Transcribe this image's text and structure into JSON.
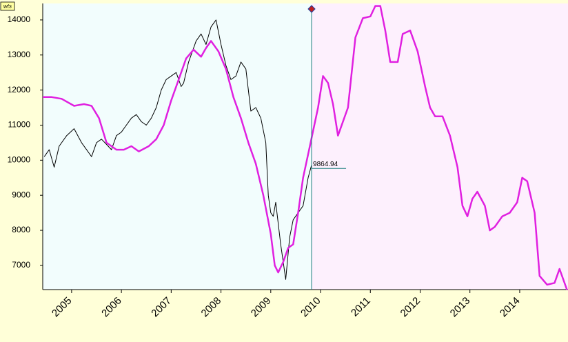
{
  "chart_data": {
    "type": "line",
    "tag": "wts",
    "xlim": [
      2004.42,
      2014.97
    ],
    "ylim": [
      6310,
      14470
    ],
    "xticks": [
      2005,
      2006,
      2007,
      2008,
      2009,
      2010,
      2011,
      2012,
      2013,
      2014
    ],
    "yticks": [
      7000,
      8000,
      9000,
      10000,
      11000,
      12000,
      13000,
      14000
    ],
    "divider_x": 2009.82,
    "last_value": 9864.94,
    "last_value_label": "9864.94",
    "series": [
      {
        "color": "#000000",
        "x": [
          2004.45,
          2004.55,
          2004.65,
          2004.75,
          2004.9,
          2005.05,
          2005.2,
          2005.3,
          2005.4,
          2005.5,
          2005.6,
          2005.7,
          2005.8,
          2005.9,
          2006.0,
          2006.1,
          2006.2,
          2006.3,
          2006.4,
          2006.5,
          2006.6,
          2006.7,
          2006.8,
          2006.9,
          2007.0,
          2007.1,
          2007.2,
          2007.25,
          2007.35,
          2007.5,
          2007.6,
          2007.7,
          2007.8,
          2007.9,
          2008.0,
          2008.1,
          2008.2,
          2008.3,
          2008.4,
          2008.5,
          2008.6,
          2008.7,
          2008.8,
          2008.9,
          2008.95,
          2009.0,
          2009.05,
          2009.1,
          2009.2,
          2009.3,
          2009.38,
          2009.45,
          2009.55,
          2009.65,
          2009.75,
          2009.82
        ],
        "values": [
          10100,
          10300,
          9800,
          10400,
          10700,
          10900,
          10500,
          10300,
          10100,
          10500,
          10600,
          10450,
          10300,
          10700,
          10800,
          11000,
          11200,
          11300,
          11100,
          11000,
          11200,
          11500,
          12000,
          12300,
          12400,
          12500,
          12100,
          12200,
          12800,
          13400,
          13600,
          13300,
          13800,
          14000,
          13300,
          12700,
          12300,
          12400,
          12800,
          12600,
          11400,
          11500,
          11200,
          10500,
          9000,
          8500,
          8400,
          8800,
          7600,
          6600,
          7800,
          8300,
          8500,
          8700,
          9500,
          9865
        ]
      },
      {
        "color": "#e020e0",
        "x": [
          2004.42,
          2004.6,
          2004.8,
          2005.05,
          2005.25,
          2005.4,
          2005.55,
          2005.7,
          2005.9,
          2006.05,
          2006.2,
          2006.35,
          2006.55,
          2006.7,
          2006.85,
          2007.0,
          2007.15,
          2007.3,
          2007.45,
          2007.6,
          2007.7,
          2007.8,
          2007.95,
          2008.1,
          2008.25,
          2008.4,
          2008.55,
          2008.7,
          2008.85,
          2009.0,
          2009.08,
          2009.15,
          2009.25,
          2009.35,
          2009.45,
          2009.55,
          2009.65,
          2009.8,
          2009.95,
          2010.05,
          2010.15,
          2010.25,
          2010.35,
          2010.55,
          2010.7,
          2010.85,
          2011.0,
          2011.1,
          2011.2,
          2011.3,
          2011.4,
          2011.55,
          2011.65,
          2011.8,
          2011.95,
          2012.1,
          2012.2,
          2012.3,
          2012.45,
          2012.6,
          2012.75,
          2012.85,
          2012.95,
          2013.05,
          2013.15,
          2013.3,
          2013.4,
          2013.5,
          2013.65,
          2013.8,
          2013.95,
          2014.05,
          2014.15,
          2014.3,
          2014.4,
          2014.55,
          2014.7,
          2014.8,
          2014.95
        ],
        "values": [
          11800,
          11800,
          11750,
          11550,
          11600,
          11550,
          11200,
          10500,
          10300,
          10300,
          10400,
          10250,
          10400,
          10600,
          11000,
          11700,
          12300,
          12900,
          13150,
          12950,
          13200,
          13400,
          13100,
          12600,
          11800,
          11200,
          10500,
          9900,
          9000,
          7900,
          7000,
          6800,
          7100,
          7500,
          7600,
          8500,
          9500,
          10500,
          11500,
          12400,
          12200,
          11600,
          10700,
          11500,
          13500,
          14050,
          14100,
          14400,
          14400,
          13700,
          12800,
          12800,
          13600,
          13700,
          13100,
          12100,
          11500,
          11250,
          11250,
          10700,
          9800,
          8700,
          8400,
          8900,
          9100,
          8700,
          8000,
          8100,
          8400,
          8500,
          8800,
          9500,
          9400,
          8500,
          6700,
          6450,
          6500,
          6900,
          6300
        ]
      }
    ]
  }
}
